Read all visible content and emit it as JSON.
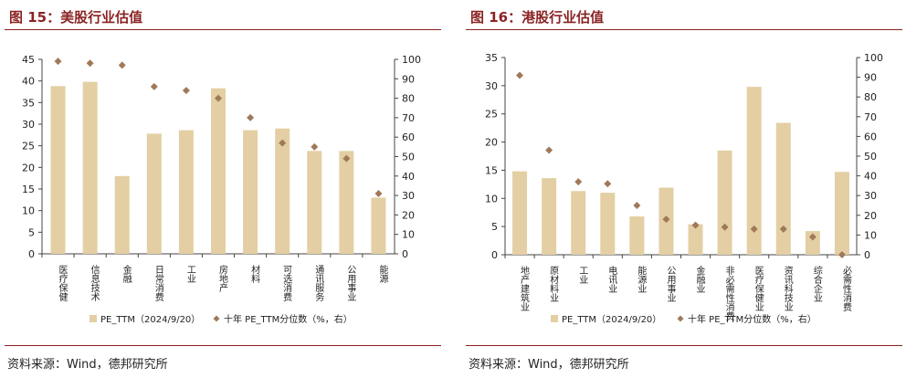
{
  "figures": [
    {
      "title": "图 15：美股行业估值",
      "source": "资料来源：Wind，德邦研究所",
      "legend": {
        "bar": "PE_TTM（2024/9/20）",
        "dot": "十年 PE_TTM分位数（%，右）"
      },
      "colors": {
        "bar": "#E3CFA3",
        "dot": "#A0795A",
        "title": "#8B2323"
      }
    },
    {
      "title": "图 16：港股行业估值",
      "source": "资料来源：Wind，德邦研究所",
      "legend": {
        "bar": "PE_TTM（2024/9/20）",
        "dot": "十年 PE_TTM分位数（%，右）"
      },
      "colors": {
        "bar": "#E3CFA3",
        "dot": "#A0795A",
        "title": "#8B2323"
      }
    }
  ],
  "chart_data": [
    {
      "type": "bar",
      "categories": [
        "医疗保健",
        "信息技术",
        "金融",
        "日常消费",
        "工业",
        "房地产",
        "材料",
        "可选消费",
        "通讯服务",
        "公用事业",
        "能源"
      ],
      "series": [
        {
          "name": "PE_TTM（2024/9/20）",
          "type": "bar",
          "axis": "left",
          "values": [
            38.8,
            39.8,
            18.0,
            27.8,
            28.6,
            38.3,
            28.6,
            29.0,
            23.8,
            23.8,
            13.0
          ]
        },
        {
          "name": "十年 PE_TTM分位数（%，右）",
          "type": "scatter",
          "axis": "right",
          "values": [
            99,
            98,
            97,
            86,
            84,
            80,
            70,
            57,
            55,
            49,
            31
          ]
        }
      ],
      "ylim": [
        0,
        45
      ],
      "yticks": [
        0,
        5,
        10,
        15,
        20,
        25,
        30,
        35,
        40,
        45
      ],
      "y2lim": [
        0,
        100
      ],
      "y2ticks": [
        0,
        10,
        20,
        30,
        40,
        50,
        60,
        70,
        80,
        90,
        100
      ],
      "grid": false,
      "legend_position": "bottom"
    },
    {
      "type": "bar",
      "categories": [
        "地产建筑业",
        "原材料业",
        "工业",
        "电讯业",
        "能源业",
        "公用事业",
        "金融业",
        "非必需性消费",
        "医疗保健业",
        "资讯科技业",
        "综合企业",
        "必需性消费"
      ],
      "series": [
        {
          "name": "PE_TTM（2024/9/20）",
          "type": "bar",
          "axis": "left",
          "values": [
            14.8,
            13.6,
            11.3,
            11.0,
            6.8,
            11.9,
            5.4,
            18.5,
            29.8,
            23.4,
            4.2,
            14.7
          ]
        },
        {
          "name": "十年 PE_TTM分位数（%，右）",
          "type": "scatter",
          "axis": "right",
          "values": [
            91,
            53,
            37,
            36,
            25,
            18,
            15,
            14,
            13,
            13,
            9,
            0
          ]
        }
      ],
      "ylim": [
        0,
        35
      ],
      "yticks": [
        0,
        5,
        10,
        15,
        20,
        25,
        30,
        35
      ],
      "y2lim": [
        0,
        100
      ],
      "y2ticks": [
        0,
        10,
        20,
        30,
        40,
        50,
        60,
        70,
        80,
        90,
        100
      ],
      "grid": false,
      "legend_position": "bottom"
    }
  ]
}
